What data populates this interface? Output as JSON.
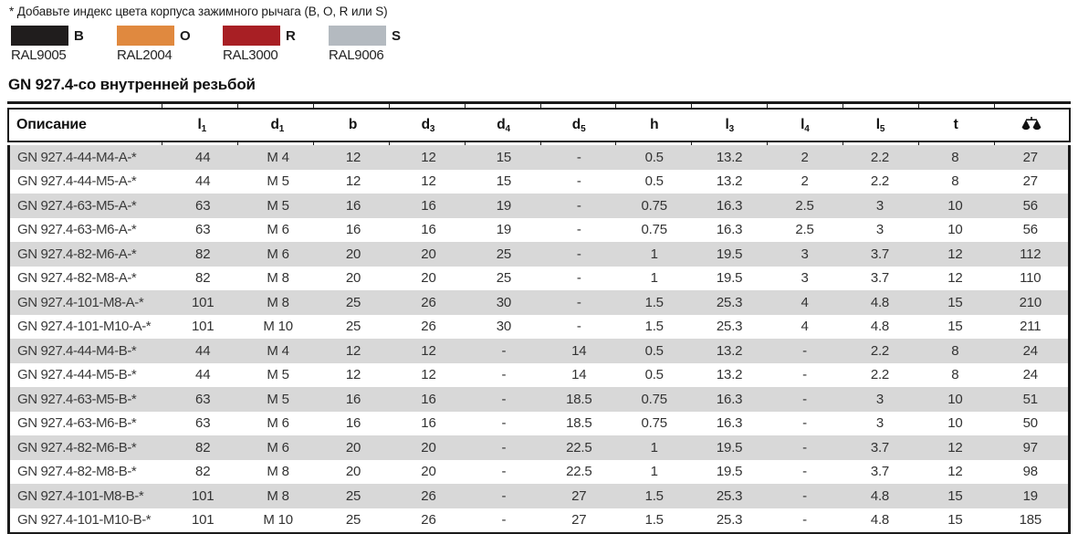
{
  "note": "* Добавьте индекс цвета корпуса зажимного рычага (B, O, R или S)",
  "legend": {
    "items": [
      {
        "letter": "B",
        "ral": "RAL9005",
        "color": "#201d1d"
      },
      {
        "letter": "O",
        "ral": "RAL2004",
        "color": "#e0893f"
      },
      {
        "letter": "R",
        "ral": "RAL3000",
        "color": "#a81f24"
      },
      {
        "letter": "S",
        "ral": "RAL9006",
        "color": "#b4bac0"
      }
    ]
  },
  "section_title": "GN 927.4-со внутренней резьбой",
  "table": {
    "columns": [
      {
        "base": "Описание",
        "sub": ""
      },
      {
        "base": "l",
        "sub": "1"
      },
      {
        "base": "d",
        "sub": "1"
      },
      {
        "base": "b",
        "sub": ""
      },
      {
        "base": "d",
        "sub": "3"
      },
      {
        "base": "d",
        "sub": "4"
      },
      {
        "base": "d",
        "sub": "5"
      },
      {
        "base": "h",
        "sub": ""
      },
      {
        "base": "l",
        "sub": "3"
      },
      {
        "base": "l",
        "sub": "4"
      },
      {
        "base": "l",
        "sub": "5"
      },
      {
        "base": "t",
        "sub": ""
      },
      {
        "base": "",
        "sub": "",
        "icon": "balance-scale-icon"
      }
    ],
    "rows": [
      {
        "desc": "GN 927.4-44-M4-A-*",
        "values": [
          "44",
          "M 4",
          "12",
          "12",
          "15",
          "-",
          "0.5",
          "13.2",
          "2",
          "2.2",
          "8",
          "27"
        ]
      },
      {
        "desc": "GN 927.4-44-M5-A-*",
        "values": [
          "44",
          "M 5",
          "12",
          "12",
          "15",
          "-",
          "0.5",
          "13.2",
          "2",
          "2.2",
          "8",
          "27"
        ]
      },
      {
        "desc": "GN 927.4-63-M5-A-*",
        "values": [
          "63",
          "M 5",
          "16",
          "16",
          "19",
          "-",
          "0.75",
          "16.3",
          "2.5",
          "3",
          "10",
          "56"
        ]
      },
      {
        "desc": "GN 927.4-63-M6-A-*",
        "values": [
          "63",
          "M 6",
          "16",
          "16",
          "19",
          "-",
          "0.75",
          "16.3",
          "2.5",
          "3",
          "10",
          "56"
        ]
      },
      {
        "desc": "GN 927.4-82-M6-A-*",
        "values": [
          "82",
          "M 6",
          "20",
          "20",
          "25",
          "-",
          "1",
          "19.5",
          "3",
          "3.7",
          "12",
          "112"
        ]
      },
      {
        "desc": "GN 927.4-82-M8-A-*",
        "values": [
          "82",
          "M 8",
          "20",
          "20",
          "25",
          "-",
          "1",
          "19.5",
          "3",
          "3.7",
          "12",
          "110"
        ]
      },
      {
        "desc": "GN 927.4-101-M8-A-*",
        "values": [
          "101",
          "M 8",
          "25",
          "26",
          "30",
          "-",
          "1.5",
          "25.3",
          "4",
          "4.8",
          "15",
          "210"
        ]
      },
      {
        "desc": "GN 927.4-101-M10-A-*",
        "values": [
          "101",
          "M 10",
          "25",
          "26",
          "30",
          "-",
          "1.5",
          "25.3",
          "4",
          "4.8",
          "15",
          "211"
        ]
      },
      {
        "desc": "GN 927.4-44-M4-B-*",
        "values": [
          "44",
          "M 4",
          "12",
          "12",
          "-",
          "14",
          "0.5",
          "13.2",
          "-",
          "2.2",
          "8",
          "24"
        ]
      },
      {
        "desc": "GN 927.4-44-M5-B-*",
        "values": [
          "44",
          "M 5",
          "12",
          "12",
          "-",
          "14",
          "0.5",
          "13.2",
          "-",
          "2.2",
          "8",
          "24"
        ]
      },
      {
        "desc": "GN 927.4-63-M5-B-*",
        "values": [
          "63",
          "M 5",
          "16",
          "16",
          "-",
          "18.5",
          "0.75",
          "16.3",
          "-",
          "3",
          "10",
          "51"
        ]
      },
      {
        "desc": "GN 927.4-63-M6-B-*",
        "values": [
          "63",
          "M 6",
          "16",
          "16",
          "-",
          "18.5",
          "0.75",
          "16.3",
          "-",
          "3",
          "10",
          "50"
        ]
      },
      {
        "desc": "GN 927.4-82-M6-B-*",
        "values": [
          "82",
          "M 6",
          "20",
          "20",
          "-",
          "22.5",
          "1",
          "19.5",
          "-",
          "3.7",
          "12",
          "97"
        ]
      },
      {
        "desc": "GN 927.4-82-M8-B-*",
        "values": [
          "82",
          "M 8",
          "20",
          "20",
          "-",
          "22.5",
          "1",
          "19.5",
          "-",
          "3.7",
          "12",
          "98"
        ]
      },
      {
        "desc": "GN 927.4-101-M8-B-*",
        "values": [
          "101",
          "M 8",
          "25",
          "26",
          "-",
          "27",
          "1.5",
          "25.3",
          "-",
          "4.8",
          "15",
          "19"
        ]
      },
      {
        "desc": "GN 927.4-101-M10-B-*",
        "values": [
          "101",
          "M 10",
          "25",
          "26",
          "-",
          "27",
          "1.5",
          "25.3",
          "-",
          "4.8",
          "15",
          "185"
        ]
      }
    ]
  }
}
